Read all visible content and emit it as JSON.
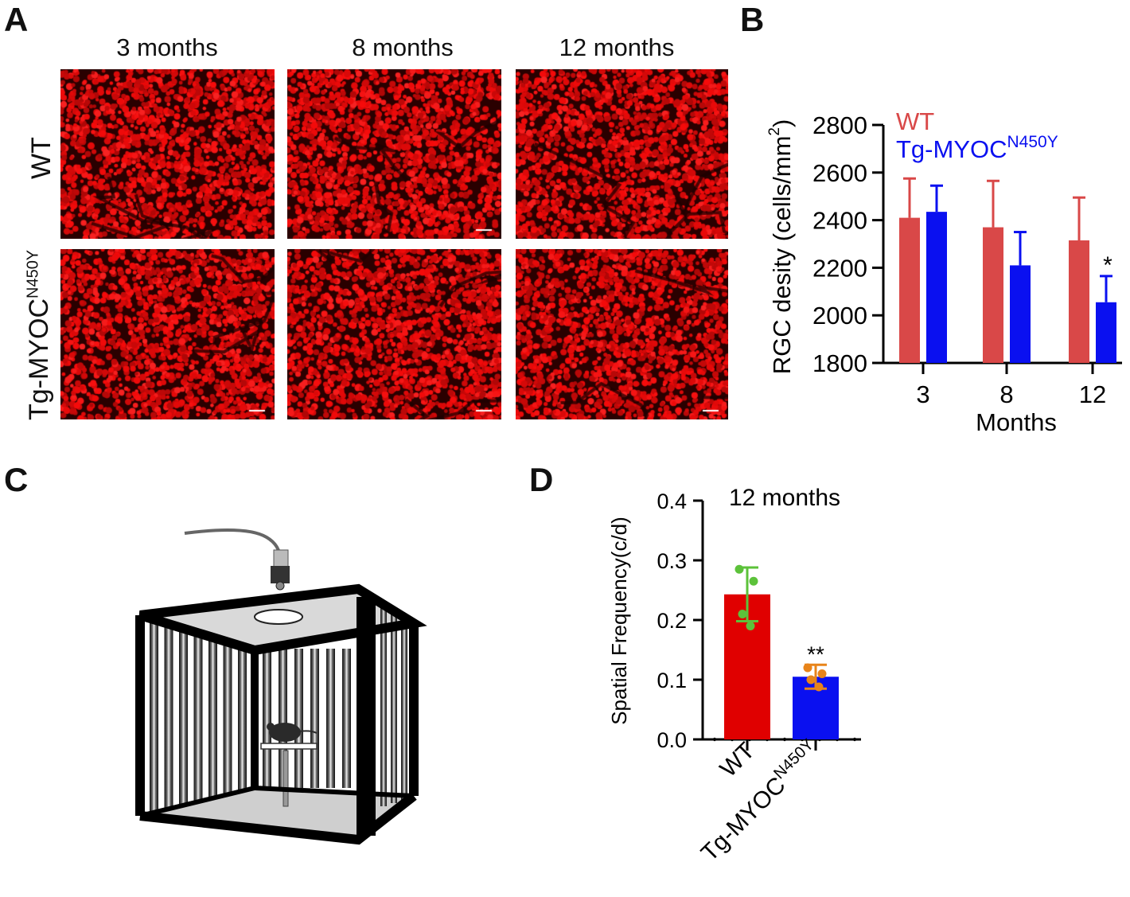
{
  "panels": {
    "a": "A",
    "b": "B",
    "c": "C",
    "d": "D"
  },
  "panel_a": {
    "columns": [
      "3 months",
      "8 months",
      "12 months"
    ],
    "row_wt": "WT",
    "row_tg_base": "Tg-MYOC",
    "row_tg_sup": "N450Y",
    "colors": {
      "stain": "#e31010",
      "background": "#2a0000"
    }
  },
  "chart_data": [
    {
      "id": "B",
      "type": "bar",
      "categories": [
        "3",
        "8",
        "12"
      ],
      "series": [
        {
          "name": "WT",
          "color": "#d94848",
          "values": [
            2410,
            2370,
            2315
          ],
          "errors": [
            165,
            195,
            180
          ]
        },
        {
          "name": "Tg-MYOCN450Y",
          "color": "#0a10f0",
          "values": [
            2435,
            2210,
            2055
          ],
          "errors": [
            110,
            140,
            110
          ]
        }
      ],
      "legend": {
        "wt": "WT",
        "tg_base": "Tg-MYOC",
        "tg_sup": "N450Y"
      },
      "ylabel_base": "RGC desity (cells/mm",
      "ylabel_sup": "2",
      "ylabel_end": ")",
      "xlabel": "Months",
      "ylim": [
        1800,
        2800
      ],
      "yticks": [
        "1800",
        "2000",
        "2200",
        "2400",
        "2600",
        "2800"
      ],
      "significance": [
        {
          "category": "12",
          "series": "Tg-MYOCN450Y",
          "label": "*"
        }
      ]
    },
    {
      "id": "D",
      "type": "bar",
      "title": "12 months",
      "categories": [
        "WT",
        "Tg-MYOCN450Y"
      ],
      "category_labels": [
        {
          "base": "WT",
          "sup": ""
        },
        {
          "base": "Tg-MYOC",
          "sup": "N450Y"
        }
      ],
      "values": [
        0.243,
        0.105
      ],
      "errors": [
        0.045,
        0.02
      ],
      "colors": [
        "#e00000",
        "#0a10f0"
      ],
      "point_colors": [
        "#5cc23a",
        "#e8841a"
      ],
      "points": [
        [
          0.285,
          0.265,
          0.21,
          0.19
        ],
        [
          0.12,
          0.11,
          0.1,
          0.088
        ]
      ],
      "ylabel": "Spatial Frequency(c/d)",
      "ylim": [
        0,
        0.4
      ],
      "yticks": [
        "0.0",
        "0.1",
        "0.2",
        "0.3",
        "0.4"
      ],
      "significance": [
        {
          "category": "Tg-MYOCN450Y",
          "label": "**"
        }
      ]
    }
  ]
}
